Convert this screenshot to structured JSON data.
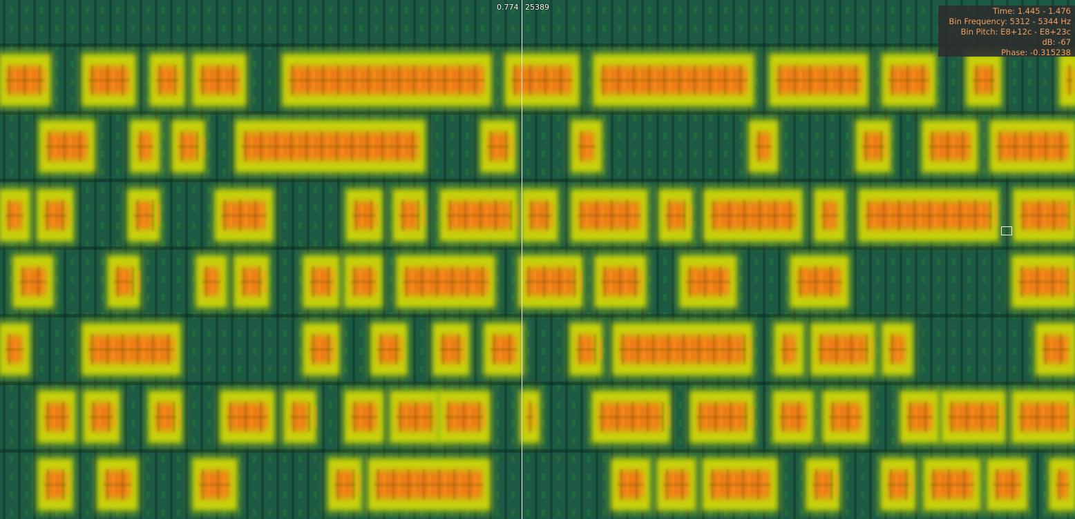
{
  "view": {
    "type": "spectrogram",
    "colors": {
      "background": "#1d5a44",
      "mid": "#c8d20c",
      "peak": "#f07418",
      "info_text": "#f0a060"
    }
  },
  "playhead": {
    "time": "0.774",
    "sample": "25389"
  },
  "info": {
    "time": "Time: 1.445 - 1.476",
    "bin_frequency": "Bin Frequency: 5312 - 5344 Hz",
    "bin_pitch": "Bin Pitch: E8+12c - E8+23c",
    "db": "dB: -67",
    "phase": "Phase: -0.315238"
  }
}
